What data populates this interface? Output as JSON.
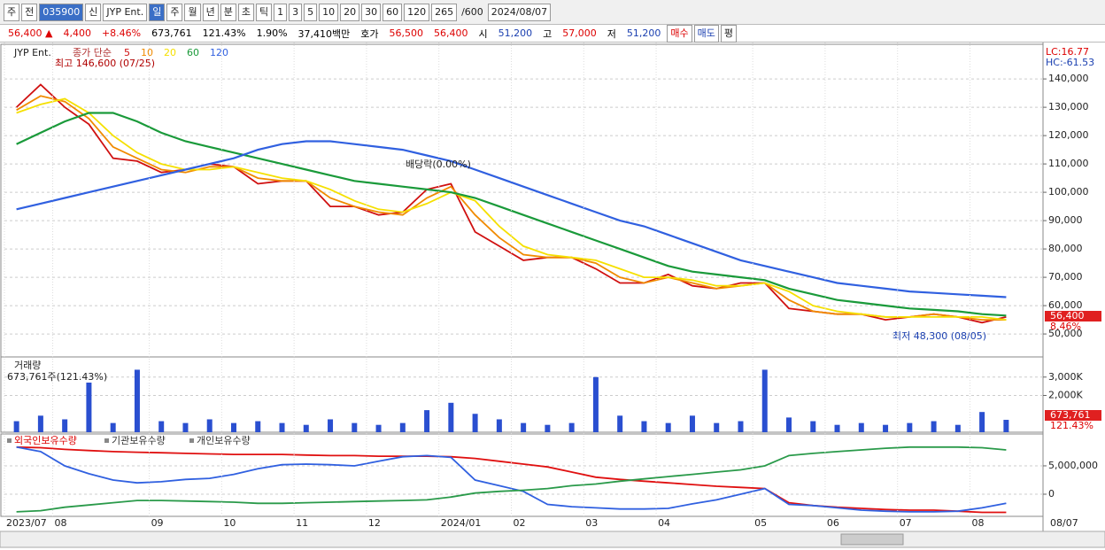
{
  "toolbar": {
    "items": [
      "주",
      "전",
      "035900",
      "신",
      "JYP Ent.",
      "일",
      "주",
      "월",
      "년",
      "분",
      "초",
      "틱",
      "1",
      "3",
      "5",
      "10",
      "20",
      "30",
      "60",
      "120",
      "265",
      "/600",
      "2024/08/07"
    ]
  },
  "info_bar": {
    "items": [
      "56,400 ▲",
      "4,400",
      "+8.46%",
      "673,761",
      "121.43%",
      "1.90%",
      "37,410백만",
      "호가",
      "56,500",
      "56,400",
      "시",
      "51,200",
      "고",
      "57,000",
      "저",
      "51,200",
      "매수",
      "매도",
      "평"
    ]
  },
  "chart_data": [
    {
      "type": "line",
      "title": "JYP Ent.",
      "subtitle": "종가 단순",
      "ylim": [
        41900,
        151600
      ],
      "yticks": [
        {
          "value": 50000,
          "label": "50,000"
        },
        {
          "value": 60000,
          "label": "60,000"
        },
        {
          "value": 70000,
          "label": "70,000"
        },
        {
          "value": 80000,
          "label": "80,000"
        },
        {
          "value": 90000,
          "label": "90,000"
        },
        {
          "value": 100000,
          "label": "100,000"
        },
        {
          "value": 110000,
          "label": "110,000"
        },
        {
          "value": 120000,
          "label": "120,000"
        },
        {
          "value": 130000,
          "label": "130,000"
        },
        {
          "value": 140000,
          "label": "140,000"
        }
      ],
      "grid": true,
      "annotations": [
        "최고 146,600 (07/25)",
        "최저 48,300 (08/05)",
        "배당락(0.00%)",
        "LC:16.77",
        "HC:-61.53",
        "56,400",
        "8.46%"
      ],
      "series": [
        {
          "name": "5",
          "color": "#d01010",
          "values": [
            130000,
            138000,
            130000,
            124000,
            112000,
            111000,
            107000,
            108000,
            110000,
            109000,
            103000,
            104000,
            104000,
            95000,
            95000,
            92000,
            93000,
            101000,
            103000,
            86000,
            81000,
            76000,
            77000,
            77000,
            73000,
            68000,
            68000,
            71000,
            67000,
            66000,
            68000,
            68000,
            59000,
            58000,
            57000,
            57000,
            55000,
            56000,
            57000,
            56000,
            54000,
            56000
          ]
        },
        {
          "name": "10",
          "color": "#f08a00",
          "values": [
            129000,
            134000,
            132000,
            126000,
            116000,
            112000,
            108000,
            107000,
            109000,
            109000,
            105000,
            104000,
            104000,
            98000,
            95000,
            93000,
            92000,
            98000,
            102000,
            92000,
            84000,
            78000,
            77000,
            77000,
            75000,
            70000,
            68000,
            70000,
            68000,
            66000,
            67000,
            68000,
            62000,
            58000,
            57000,
            57000,
            56000,
            56000,
            57000,
            56000,
            55000,
            55000
          ]
        },
        {
          "name": "20",
          "color": "#f5e000",
          "values": [
            128000,
            131000,
            133000,
            128000,
            120000,
            114000,
            110000,
            108000,
            108000,
            109000,
            107000,
            105000,
            104000,
            101000,
            97000,
            94000,
            93000,
            96000,
            100000,
            97000,
            88000,
            81000,
            78000,
            77000,
            76000,
            73000,
            70000,
            70000,
            69000,
            67000,
            67000,
            68000,
            65000,
            60000,
            58000,
            57000,
            56000,
            56000,
            56000,
            56000,
            56000,
            55000
          ]
        },
        {
          "name": "60",
          "color": "#1a9a3a",
          "values": [
            117000,
            121000,
            125000,
            128000,
            128000,
            125000,
            121000,
            118000,
            116000,
            114000,
            112000,
            110000,
            108000,
            106000,
            104000,
            103000,
            102000,
            101000,
            100000,
            98000,
            95000,
            92000,
            89000,
            86000,
            83000,
            80000,
            77000,
            74000,
            72000,
            71000,
            70000,
            69000,
            66000,
            64000,
            62000,
            61000,
            60000,
            59000,
            58500,
            58000,
            57000,
            56500
          ]
        },
        {
          "name": "120",
          "color": "#3060e0",
          "values": [
            94000,
            96000,
            98000,
            100000,
            102000,
            104000,
            106000,
            108000,
            110000,
            112000,
            115000,
            117000,
            118000,
            118000,
            117000,
            116000,
            115000,
            113000,
            111000,
            108000,
            105000,
            102000,
            99000,
            96000,
            93000,
            90000,
            88000,
            85000,
            82000,
            79000,
            76000,
            74000,
            72000,
            70000,
            68000,
            67000,
            66000,
            65000,
            64500,
            64000,
            63500,
            63000
          ]
        }
      ]
    },
    {
      "type": "bar",
      "title": "거래량",
      "subtitle": "673,761주(121.43%)",
      "color": "#2a4fd0",
      "ylim": [
        0,
        4000000
      ],
      "yticks": [
        {
          "value": 2000000,
          "label": "2,000K"
        },
        {
          "value": 3000000,
          "label": "3,000K"
        }
      ],
      "annotations": [
        "673,761",
        "121.43%"
      ],
      "values": [
        600000,
        900000,
        700000,
        2700000,
        500000,
        3400000,
        600000,
        500000,
        700000,
        500000,
        600000,
        500000,
        400000,
        700000,
        500000,
        400000,
        500000,
        1200000,
        1600000,
        1000000,
        700000,
        500000,
        400000,
        500000,
        3000000,
        900000,
        600000,
        500000,
        900000,
        500000,
        600000,
        3400000,
        800000,
        600000,
        400000,
        500000,
        400000,
        500000,
        600000,
        400000,
        1100000,
        673761
      ]
    },
    {
      "type": "line",
      "ylim": [
        -3900000,
        10300000
      ],
      "yticks": [
        0,
        {
          "value": 5000000,
          "label": "5,000,000"
        }
      ],
      "categories": [
        "2023/07",
        null,
        "08",
        null,
        null,
        null,
        "09",
        null,
        null,
        "10",
        null,
        null,
        "11",
        null,
        null,
        "12",
        null,
        null,
        "2024/01",
        null,
        null,
        "02",
        null,
        null,
        "03",
        null,
        null,
        "04",
        null,
        null,
        null,
        "05",
        null,
        null,
        "06",
        null,
        null,
        "07",
        null,
        null,
        "08",
        null
      ],
      "x_end_label": "08/07",
      "series": [
        {
          "name": "외국인보유수량",
          "color": "#e01010",
          "values": [
            8300000,
            8200000,
            7900000,
            7700000,
            7500000,
            7400000,
            7300000,
            7200000,
            7100000,
            7000000,
            7000000,
            7000000,
            6900000,
            6800000,
            6800000,
            6700000,
            6700000,
            6700000,
            6600000,
            6300000,
            5800000,
            5300000,
            4800000,
            3900000,
            3000000,
            2600000,
            2300000,
            2000000,
            1700000,
            1400000,
            1200000,
            1000000,
            -1500000,
            -2000000,
            -2300000,
            -2500000,
            -2700000,
            -2800000,
            -2800000,
            -3000000,
            -3200000,
            -3200000
          ]
        },
        {
          "name": "기관보유수량",
          "color": "#3060e0",
          "values": [
            8300000,
            7500000,
            5000000,
            3600000,
            2500000,
            2000000,
            2200000,
            2600000,
            2800000,
            3500000,
            4500000,
            5200000,
            5300000,
            5200000,
            5000000,
            5800000,
            6600000,
            6800000,
            6500000,
            2500000,
            1500000,
            500000,
            -1800000,
            -2200000,
            -2400000,
            -2600000,
            -2600000,
            -2500000,
            -1700000,
            -1000000,
            0,
            1000000,
            -1800000,
            -2000000,
            -2400000,
            -2800000,
            -3000000,
            -3100000,
            -3100000,
            -3000000,
            -2400000,
            -1600000
          ]
        },
        {
          "name": "개인보유수량",
          "color": "#2a9a4a",
          "values": [
            -3100000,
            -2900000,
            -2300000,
            -1900000,
            -1500000,
            -1100000,
            -1100000,
            -1200000,
            -1300000,
            -1400000,
            -1600000,
            -1600000,
            -1500000,
            -1400000,
            -1300000,
            -1200000,
            -1100000,
            -1000000,
            -500000,
            200000,
            500000,
            700000,
            1000000,
            1500000,
            1800000,
            2300000,
            2700000,
            3100000,
            3500000,
            3900000,
            4300000,
            5000000,
            6800000,
            7200000,
            7500000,
            7800000,
            8100000,
            8300000,
            8300000,
            8300000,
            8200000,
            7800000
          ]
        }
      ]
    }
  ]
}
